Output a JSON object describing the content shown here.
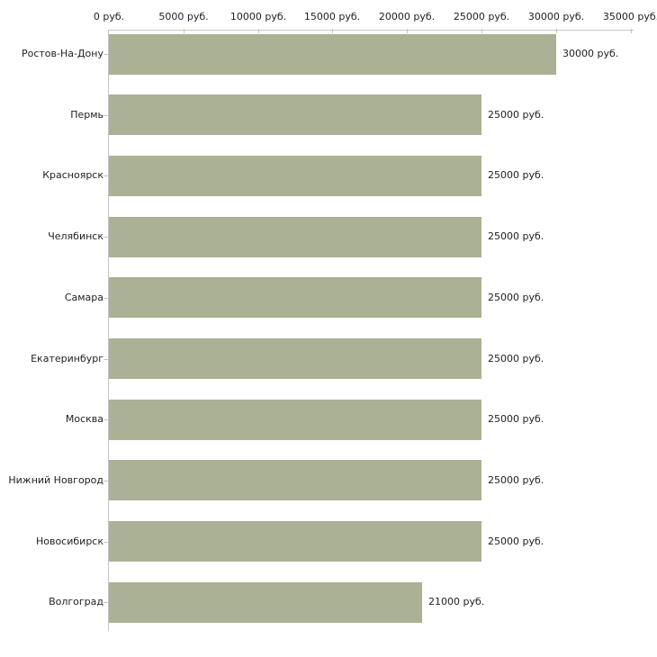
{
  "chart_data": {
    "type": "bar",
    "orientation": "horizontal",
    "title": "",
    "xlabel": "",
    "ylabel": "",
    "unit_suffix": " руб.",
    "categories": [
      "Ростов-На-Дону",
      "Пермь",
      "Красноярск",
      "Челябинск",
      "Самара",
      "Екатеринбург",
      "Москва",
      "Нижний Новгород",
      "Новосибирск",
      "Волгоград"
    ],
    "values": [
      30000,
      25000,
      25000,
      25000,
      25000,
      25000,
      25000,
      25000,
      25000,
      21000
    ],
    "value_labels": [
      "30000 руб.",
      "25000 руб.",
      "25000 руб.",
      "25000 руб.",
      "25000 руб.",
      "25000 руб.",
      "25000 руб.",
      "25000 руб.",
      "25000 руб.",
      "21000 руб."
    ],
    "x_ticks": [
      {
        "value": 0,
        "label": "0 руб."
      },
      {
        "value": 5000,
        "label": "5000 руб."
      },
      {
        "value": 10000,
        "label": "10000 руб."
      },
      {
        "value": 15000,
        "label": "15000 руб."
      },
      {
        "value": 20000,
        "label": "20000 руб."
      },
      {
        "value": 25000,
        "label": "25000 руб."
      },
      {
        "value": 30000,
        "label": "30000 руб."
      },
      {
        "value": 35000,
        "label": "35000 руб."
      }
    ],
    "xlim": [
      0,
      35000
    ],
    "grid": false,
    "legend": null,
    "colors": {
      "bar": "#abb194",
      "axis_line": "#c6c6c6",
      "x_tick": "#cbcb9b",
      "y_tick": "#c9c9ab",
      "text": "#222222",
      "background": "#ffffff"
    }
  }
}
